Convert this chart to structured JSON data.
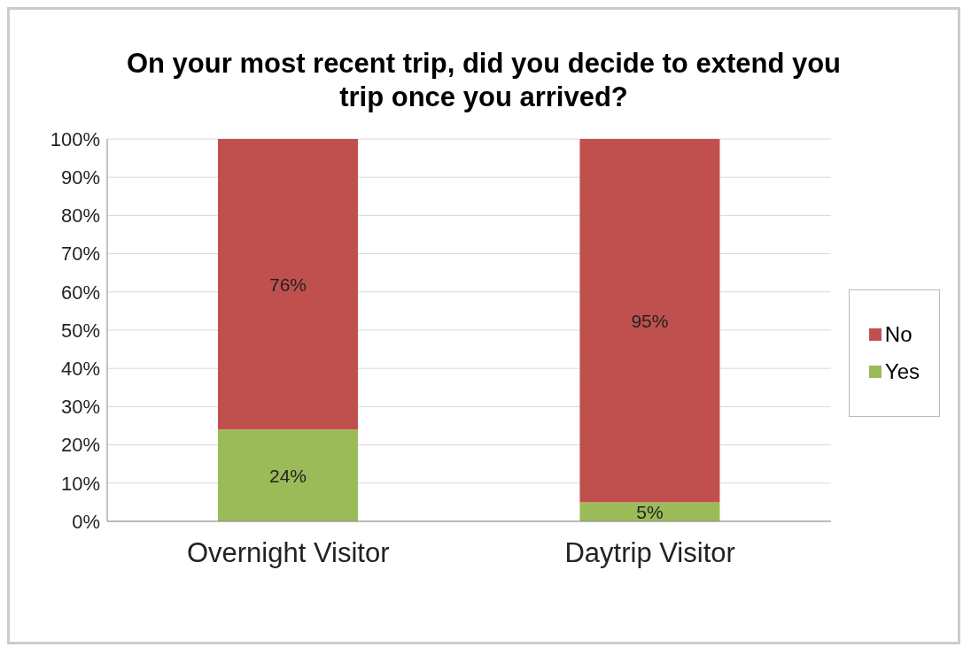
{
  "chart_data": {
    "type": "bar",
    "title": "On your most recent trip, did you decide to extend you trip once you arrived?",
    "categories": [
      "Overnight Visitor",
      "Daytrip Visitor"
    ],
    "series": [
      {
        "name": "Yes",
        "color": "#9bbb59",
        "values": [
          24,
          5
        ],
        "value_labels": [
          "24%",
          "5%"
        ]
      },
      {
        "name": "No",
        "color": "#c0504d",
        "values": [
          76,
          95
        ],
        "value_labels": [
          "76%",
          "95%"
        ]
      }
    ],
    "stacked": true,
    "ylim": [
      0,
      100
    ],
    "yticks": [
      {
        "value": 0,
        "label": "0%"
      },
      {
        "value": 10,
        "label": "10%"
      },
      {
        "value": 20,
        "label": "20%"
      },
      {
        "value": 30,
        "label": "30%"
      },
      {
        "value": 40,
        "label": "40%"
      },
      {
        "value": 50,
        "label": "50%"
      },
      {
        "value": 60,
        "label": "60%"
      },
      {
        "value": 70,
        "label": "70%"
      },
      {
        "value": 80,
        "label": "80%"
      },
      {
        "value": 90,
        "label": "90%"
      },
      {
        "value": 100,
        "label": "100%"
      }
    ],
    "grid": "y",
    "legend": "right"
  }
}
